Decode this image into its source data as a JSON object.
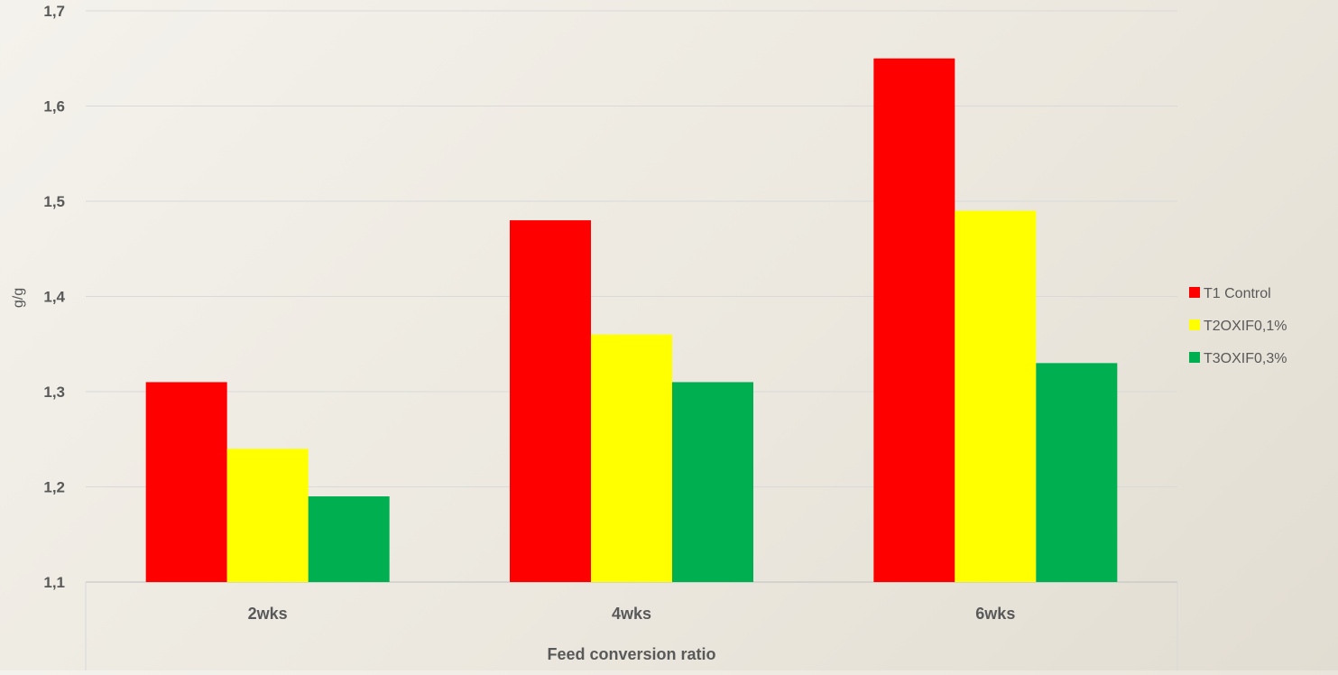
{
  "chart_data": {
    "type": "bar",
    "title": "",
    "xlabel": "Feed conversion ratio",
    "ylabel": "g/g",
    "categories": [
      "2wks",
      "4wks",
      "6wks"
    ],
    "series": [
      {
        "name": "T1 Control",
        "color": "#ff0000",
        "values": [
          1.31,
          1.48,
          1.65
        ]
      },
      {
        "name": "T2OXIF0,1%",
        "color": "#ffff00",
        "values": [
          1.24,
          1.36,
          1.49
        ]
      },
      {
        "name": "T3OXIF0,3%",
        "color": "#00b050",
        "values": [
          1.19,
          1.31,
          1.33
        ]
      }
    ],
    "ylim": [
      1.1,
      1.7
    ],
    "yticks": [
      1.1,
      1.2,
      1.3,
      1.4,
      1.5,
      1.6,
      1.7
    ],
    "ytick_labels": [
      "1,1",
      "1,2",
      "1,3",
      "1,4",
      "1,5",
      "1,6",
      "1,7"
    ],
    "grid": true,
    "legend_position": "right"
  }
}
